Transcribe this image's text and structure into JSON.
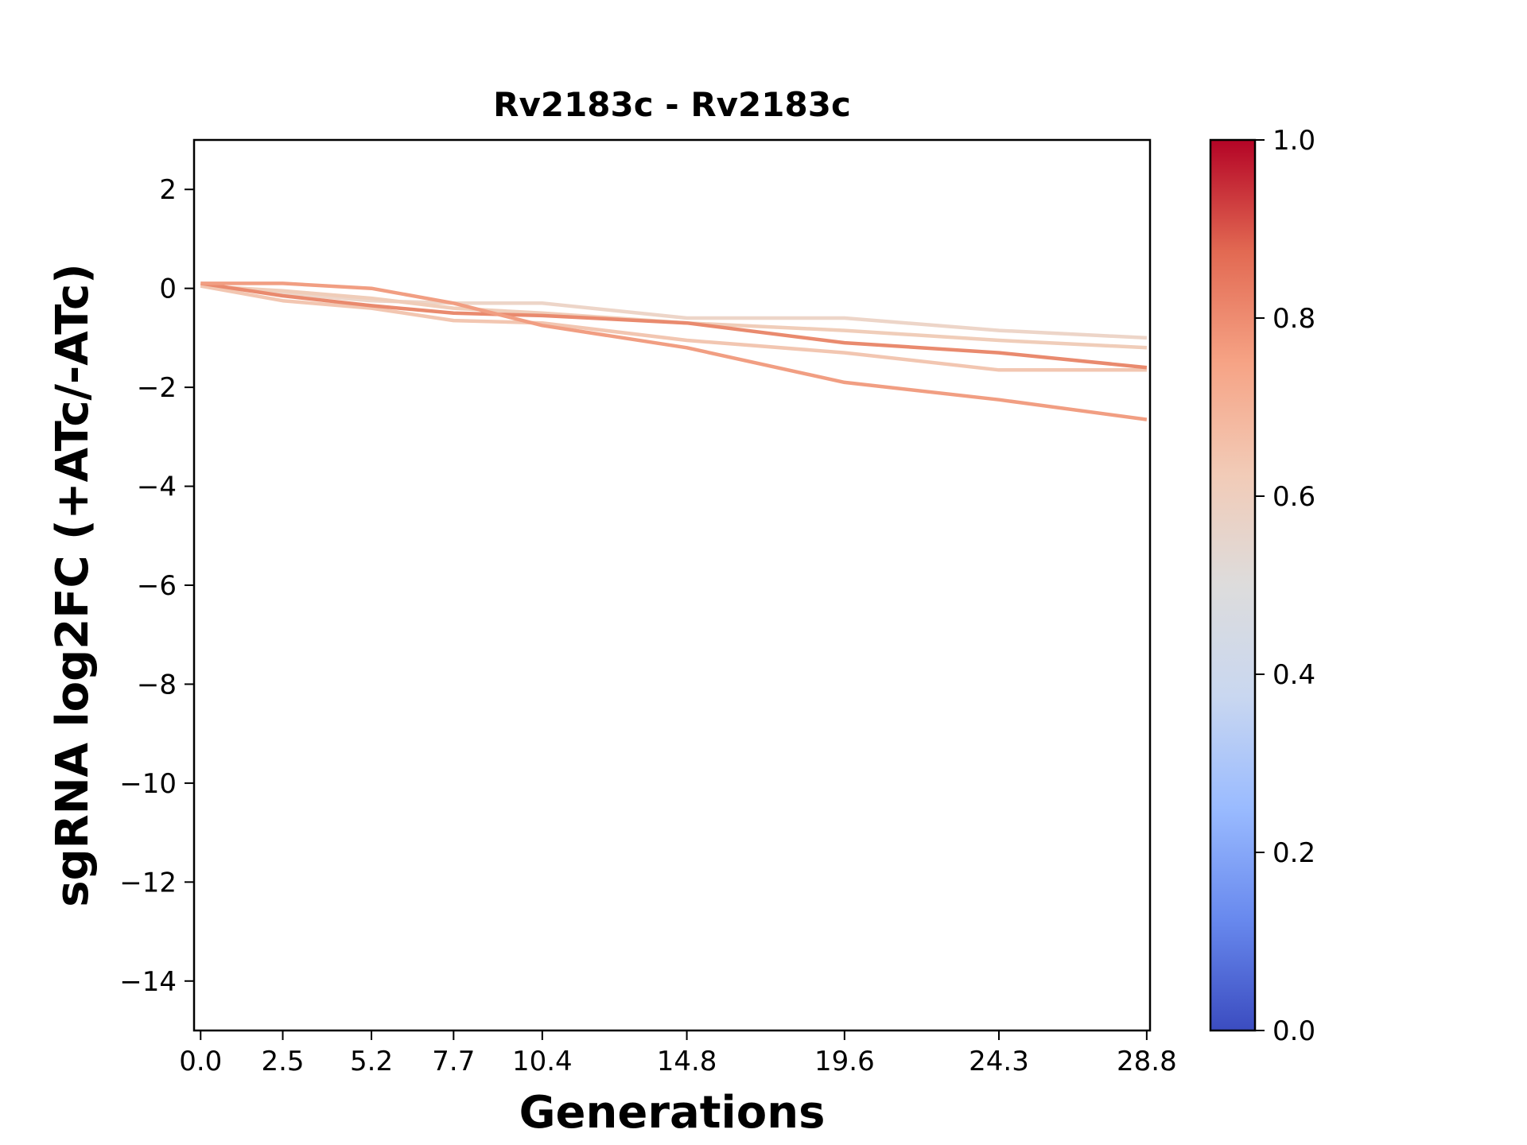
{
  "chart_data": {
    "type": "line",
    "title": "Rv2183c - Rv2183c",
    "xlabel": "Generations",
    "ylabel": "sgRNA log2FC (+ATc/-ATc)",
    "x": [
      0.0,
      2.5,
      5.2,
      7.7,
      10.4,
      14.8,
      19.6,
      24.3,
      28.8
    ],
    "x_tick_labels": [
      "0.0",
      "2.5",
      "5.2",
      "7.7",
      "10.4",
      "14.8",
      "19.6",
      "24.3",
      "28.8"
    ],
    "xlim": [
      -0.2,
      28.9
    ],
    "ylim": [
      -15,
      3
    ],
    "y_ticks": [
      2,
      0,
      -2,
      -4,
      -6,
      -8,
      -10,
      -12,
      -14
    ],
    "y_tick_labels": [
      "2",
      "0",
      "−2",
      "−4",
      "−6",
      "−8",
      "−10",
      "−12",
      "−14"
    ],
    "grid": false,
    "legend": "none",
    "series": [
      {
        "color": "#edd5c8",
        "values": [
          0.05,
          -0.1,
          -0.25,
          -0.3,
          -0.3,
          -0.6,
          -0.6,
          -0.85,
          -1.0
        ]
      },
      {
        "color": "#f0cdb9",
        "values": [
          0.05,
          -0.05,
          -0.2,
          -0.4,
          -0.5,
          -0.7,
          -0.85,
          -1.05,
          -1.2
        ]
      },
      {
        "color": "#f2c6b1",
        "values": [
          0.05,
          -0.25,
          -0.4,
          -0.65,
          -0.7,
          -1.05,
          -1.3,
          -1.65,
          -1.65
        ]
      },
      {
        "color": "#e98a6e",
        "values": [
          0.1,
          -0.15,
          -0.35,
          -0.5,
          -0.55,
          -0.7,
          -1.1,
          -1.3,
          -1.6
        ]
      },
      {
        "color": "#f19e82",
        "values": [
          0.1,
          0.1,
          0.0,
          -0.3,
          -0.75,
          -1.2,
          -1.9,
          -2.25,
          -2.65
        ]
      }
    ],
    "colorbar": {
      "ticks": [
        "0.0",
        "0.2",
        "0.4",
        "0.6",
        "0.8",
        "1.0"
      ],
      "tick_values": [
        0,
        0.2,
        0.4,
        0.6,
        0.8,
        1.0
      ],
      "colormap": "coolwarm",
      "stops": [
        "#3b4cc0",
        "#6889ee",
        "#9abbff",
        "#c9d7f0",
        "#dddcdc",
        "#f2cbb7",
        "#f6a385",
        "#e26952",
        "#b40426"
      ]
    }
  }
}
